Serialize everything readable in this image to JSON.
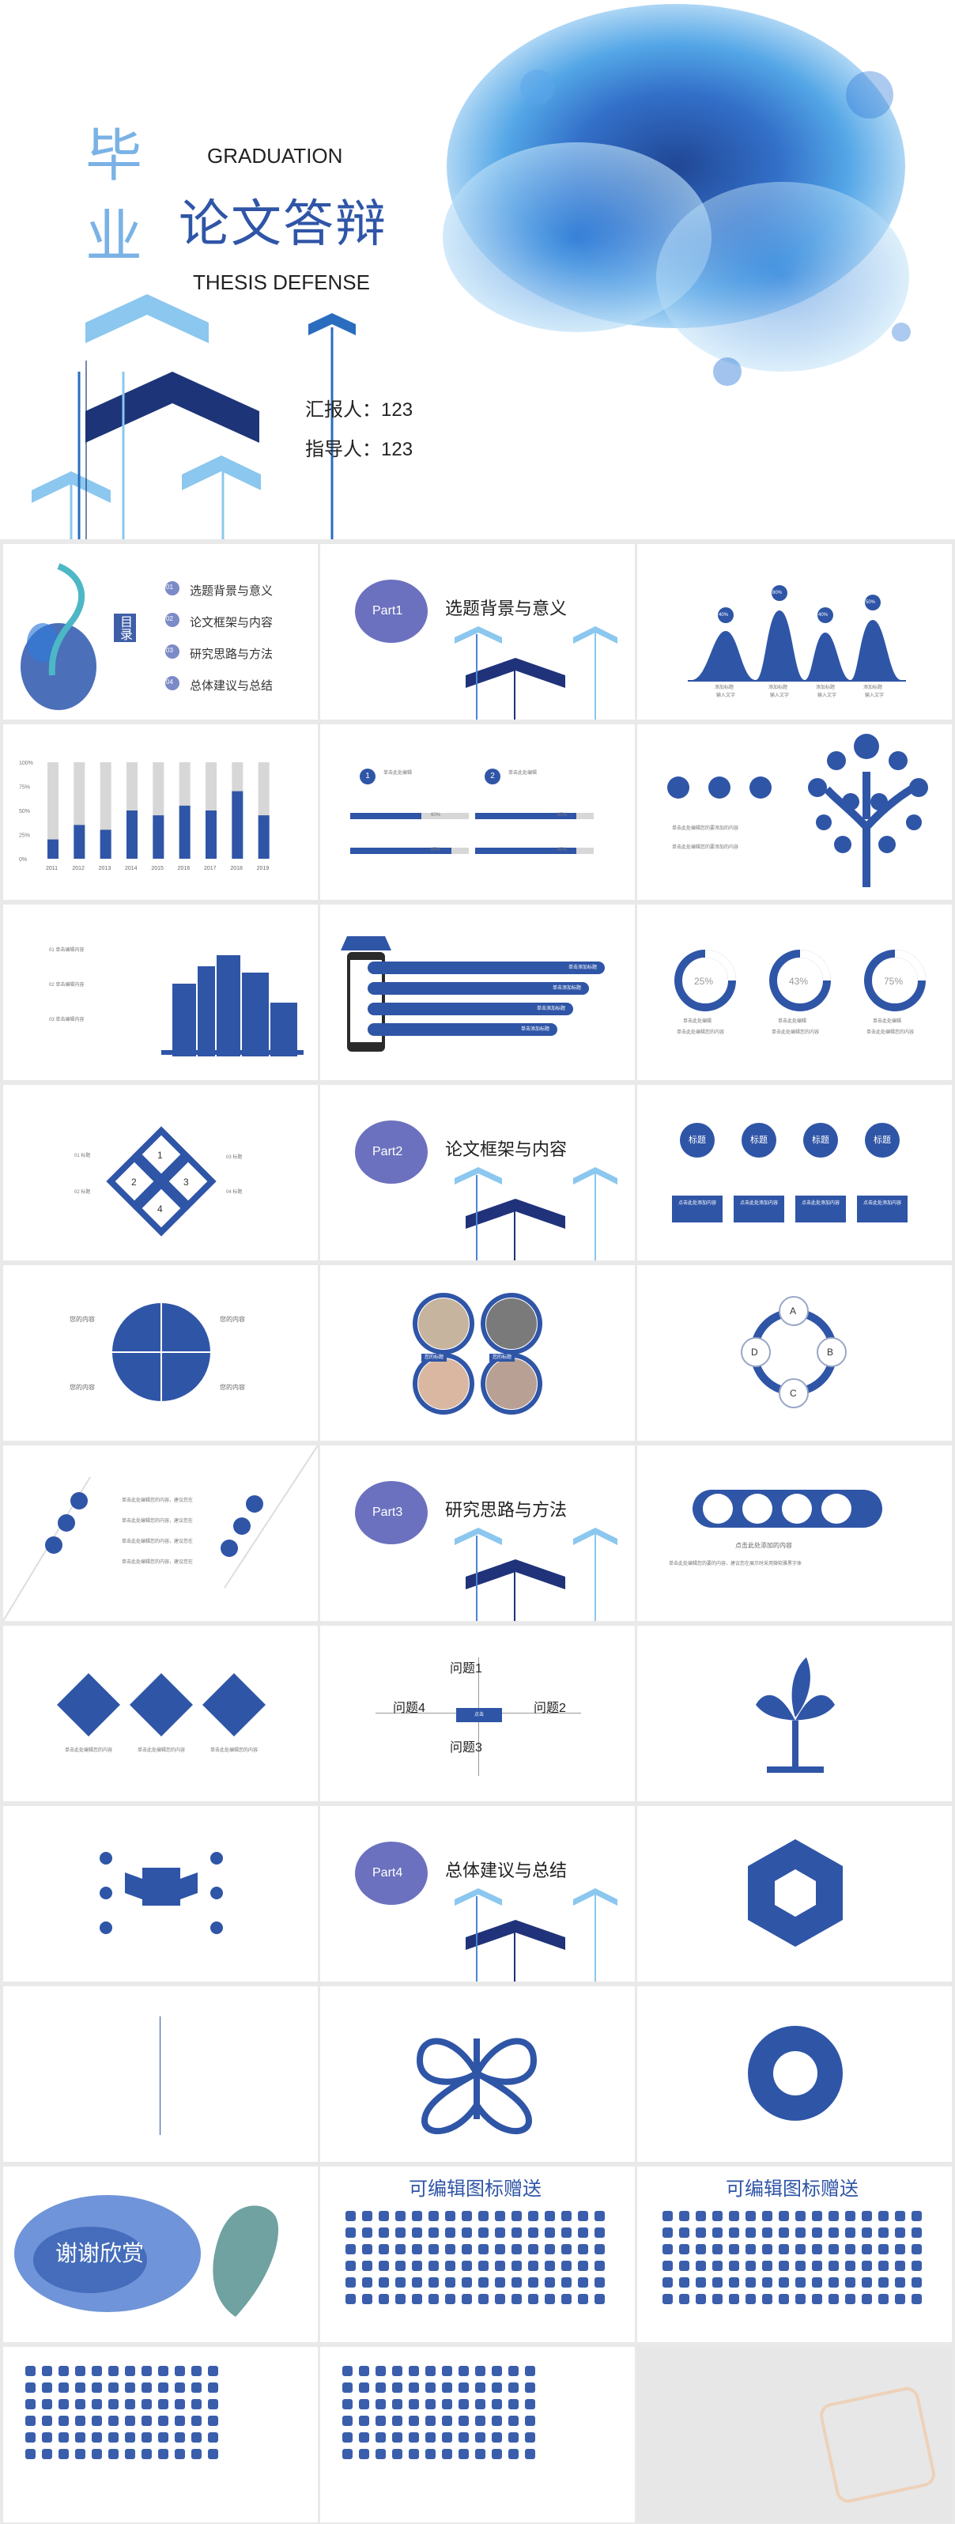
{
  "cover": {
    "char1": "毕",
    "char2": "业",
    "title_main": "论文答辩",
    "eng1": "GRADUATION",
    "eng2": "THESIS DEFENSE",
    "reporter_label": "汇报人：",
    "reporter_value": "123",
    "advisor_label": "指导人：",
    "advisor_value": "123"
  },
  "toc": {
    "label": "目录",
    "items": [
      {
        "num": "01",
        "text": "选题背景与意义"
      },
      {
        "num": "02",
        "text": "论文框架与内容"
      },
      {
        "num": "03",
        "text": "研究思路与方法"
      },
      {
        "num": "04",
        "text": "总体建议与总结"
      }
    ]
  },
  "parts": [
    {
      "label": "Part1",
      "title": "选题背景与意义"
    },
    {
      "label": "Part2",
      "title": "论文框架与内容"
    },
    {
      "label": "Part3",
      "title": "研究思路与方法"
    },
    {
      "label": "Part4",
      "title": "总体建议与总结"
    }
  ],
  "mountain": {
    "pcts": [
      "40%",
      "80%",
      "40%",
      "50%"
    ],
    "labels": [
      "添加标题",
      "添加标题",
      "添加标题",
      "添加标题"
    ],
    "subs": [
      "输入文字",
      "输入文字",
      "输入文字",
      "输入文字"
    ]
  },
  "bar_chart": {
    "chart_data": {
      "type": "bar",
      "categories": [
        "2011",
        "2012",
        "2013",
        "2014",
        "2015",
        "2016",
        "2017",
        "2018",
        "2019"
      ],
      "values": [
        20,
        35,
        30,
        50,
        45,
        55,
        50,
        70,
        45
      ],
      "ylim": [
        0,
        100
      ],
      "yticks": [
        "100%",
        "75%",
        "50%",
        "25%",
        "0%"
      ]
    }
  },
  "progress": {
    "items": [
      {
        "title": "单击此处编辑",
        "value": "60%"
      },
      {
        "title": "单击此处编辑",
        "value": "85%"
      },
      {
        "title": "单击此处编辑",
        "value": "85%"
      },
      {
        "title": "单击此处编辑",
        "value": "85%"
      }
    ],
    "nums": [
      "1",
      "2"
    ]
  },
  "tree": {
    "desc": [
      "单击此处编辑您的要添加的内容",
      "单击此处编辑您的要添加的内容"
    ]
  },
  "city": {
    "items": [
      "01 单击编辑内容",
      "02 单击编辑内容",
      "03 单击编辑内容"
    ]
  },
  "shop": {
    "rows": [
      "单击添加标题",
      "单击添加标题",
      "单击添加标题",
      "单击添加标题"
    ],
    "nums": [
      "1",
      "2",
      "3",
      "4"
    ]
  },
  "donuts": {
    "values": [
      "25%",
      "43%",
      "75%"
    ],
    "labels": [
      "单击此处编辑",
      "单击此处编辑",
      "单击此处编辑"
    ],
    "sub": [
      "单击此处编辑您的内容",
      "单击此处编辑您的内容",
      "单击此处编辑您的内容"
    ]
  },
  "diamond": {
    "nums": [
      "1",
      "2",
      "3",
      "4"
    ],
    "labels": [
      "01 标题",
      "02 标题",
      "03 标题",
      "04 标题"
    ]
  },
  "flow": {
    "labels": [
      "标题",
      "标题",
      "标题",
      "标题"
    ],
    "boxes": [
      "点击此处添加内容",
      "点击此处添加内容",
      "点击此处添加内容",
      "点击此处添加内容"
    ]
  },
  "pie": {
    "labels": [
      "您的内容",
      "您的内容",
      "您的内容",
      "您的内容"
    ]
  },
  "photos": {
    "labels": [
      "您的标题",
      "您的标题"
    ]
  },
  "cross": {
    "letters": [
      "A",
      "B",
      "C",
      "D"
    ]
  },
  "dots": {
    "items": [
      "单击此处编辑您的内容，建议您在",
      "单击此处编辑您的内容，建议您在",
      "单击此处编辑您的内容，建议您在",
      "单击此处编辑您的内容，建议您在"
    ]
  },
  "icons_row": {
    "text": "点击此处添加的内容",
    "desc": "单击此处编辑您的要的内容，建议您在展示时采用微软雅黑字体"
  },
  "diamonds3": {
    "labels": [
      "单击此处编辑您的内容",
      "单击此处编辑您的内容",
      "单击此处编辑您的内容"
    ]
  },
  "questions": {
    "q1": "问题1",
    "q2": "问题2",
    "q3": "问题3",
    "q4": "问题4",
    "center": "点击"
  },
  "thanks": {
    "text": "谢谢欣赏"
  },
  "gift": {
    "title": "可编辑图标赠送"
  }
}
